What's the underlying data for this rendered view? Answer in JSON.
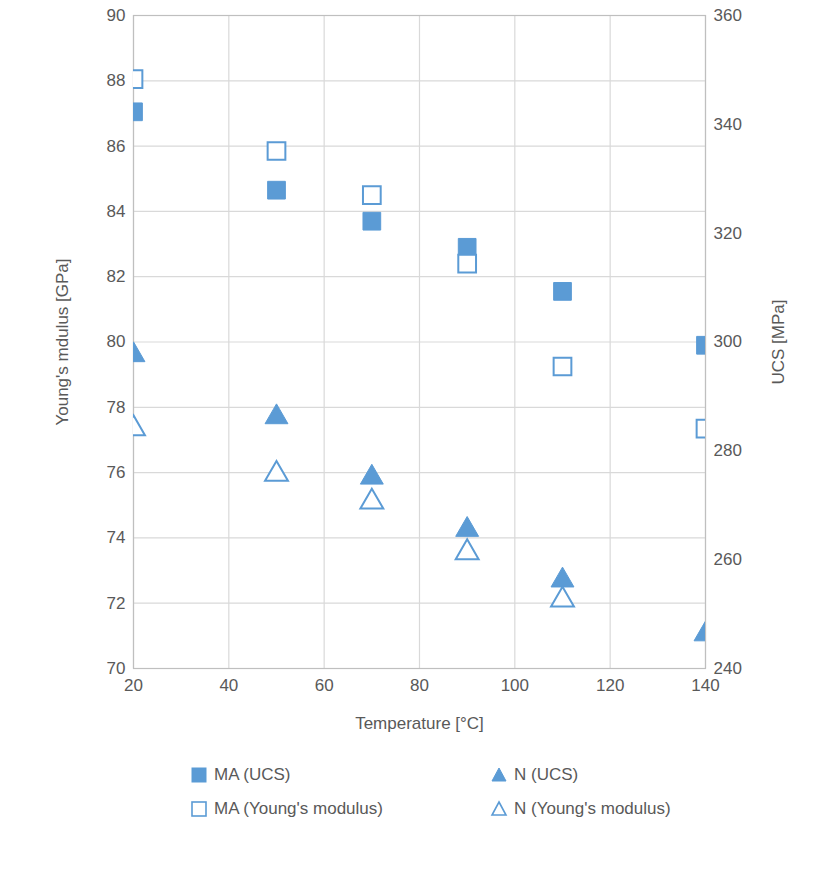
{
  "chart_data": {
    "type": "scatter",
    "xlabel": "Temperature [°C]",
    "ylabel": "Young's mdulus [GPa]",
    "y2label": "UCS [MPa]",
    "x": [
      20,
      50,
      70,
      90,
      110,
      140
    ],
    "xlim": [
      20,
      140
    ],
    "xticks": [
      20,
      40,
      60,
      80,
      100,
      120,
      140
    ],
    "ylim": [
      70,
      90
    ],
    "yticks": [
      70,
      72,
      74,
      76,
      78,
      80,
      82,
      84,
      86,
      88,
      90
    ],
    "y2lim": [
      240,
      360
    ],
    "y2ticks": [
      240,
      260,
      280,
      300,
      320,
      340,
      360
    ],
    "grid": true,
    "legend": "bottom",
    "series": [
      {
        "name": "MA (UCS)",
        "color": "#5b9bd5",
        "marker": "square",
        "axis": "y2",
        "values": [
          342.3,
          327.9,
          322.2,
          317.4,
          309.3,
          299.4
        ]
      },
      {
        "name": "N (UCS)",
        "color": "#5b9bd5",
        "marker": "triangle",
        "axis": "y2",
        "values": [
          297.6,
          286.2,
          275.1,
          265.5,
          256.2,
          246.3
        ]
      },
      {
        "name": "MA (Young's modulus)",
        "color": "#5b9bd5",
        "marker": "square-open",
        "axis": "y",
        "values": [
          88.05,
          85.85,
          84.5,
          82.4,
          79.25,
          77.35
        ]
      },
      {
        "name": "N (Young's modulus)",
        "color": "#5b9bd5",
        "marker": "triangle-open",
        "axis": "y",
        "values": [
          77.35,
          75.95,
          75.1,
          73.55,
          72.1,
          null
        ]
      }
    ]
  }
}
